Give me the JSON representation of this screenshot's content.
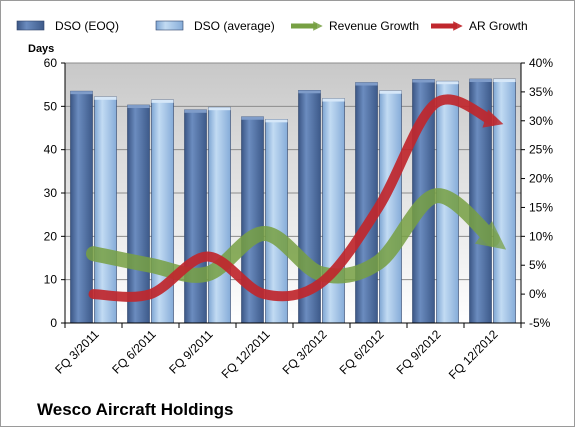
{
  "chart_data": {
    "type": "bar",
    "title": "Wesco Aircraft Holdings",
    "ylabel": "Days",
    "y2label": "",
    "categories": [
      "FQ 3/2011",
      "FQ 6/2011",
      "FQ 9/2011",
      "FQ 12/2011",
      "FQ 3/2012",
      "FQ 6/2012",
      "FQ 9/2012",
      "FQ 12/2012"
    ],
    "ylim": [
      0,
      60
    ],
    "y_ticks": [
      "0",
      "10",
      "20",
      "30",
      "40",
      "50",
      "60"
    ],
    "y2lim": [
      -5,
      40
    ],
    "y2_ticks": [
      "-5%",
      "0%",
      "5%",
      "10%",
      "15%",
      "20%",
      "25%",
      "30%",
      "35%",
      "40%"
    ],
    "grid": true,
    "legend_position": "top",
    "series": [
      {
        "name": "DSO (EOQ)",
        "kind": "bar",
        "axis": "left",
        "color": "#4f6e9e",
        "values": [
          53.5,
          50.3,
          49.2,
          47.6,
          53.7,
          55.5,
          56.2,
          56.3
        ]
      },
      {
        "name": "DSO (average)",
        "kind": "bar",
        "axis": "left",
        "color": "#9dc0e4",
        "values": [
          52.2,
          51.5,
          49.8,
          47.0,
          51.8,
          53.6,
          55.8,
          56.3
        ]
      },
      {
        "name": "Revenue Growth",
        "kind": "line",
        "axis": "right",
        "color": "#77a043",
        "values": [
          7,
          5,
          3.5,
          10.5,
          3.5,
          5.5,
          17,
          9.5
        ]
      },
      {
        "name": "AR Growth",
        "kind": "line",
        "axis": "right",
        "color": "#c0272d",
        "values": [
          0,
          0,
          6.5,
          0,
          2,
          15,
          33,
          30
        ]
      }
    ]
  }
}
